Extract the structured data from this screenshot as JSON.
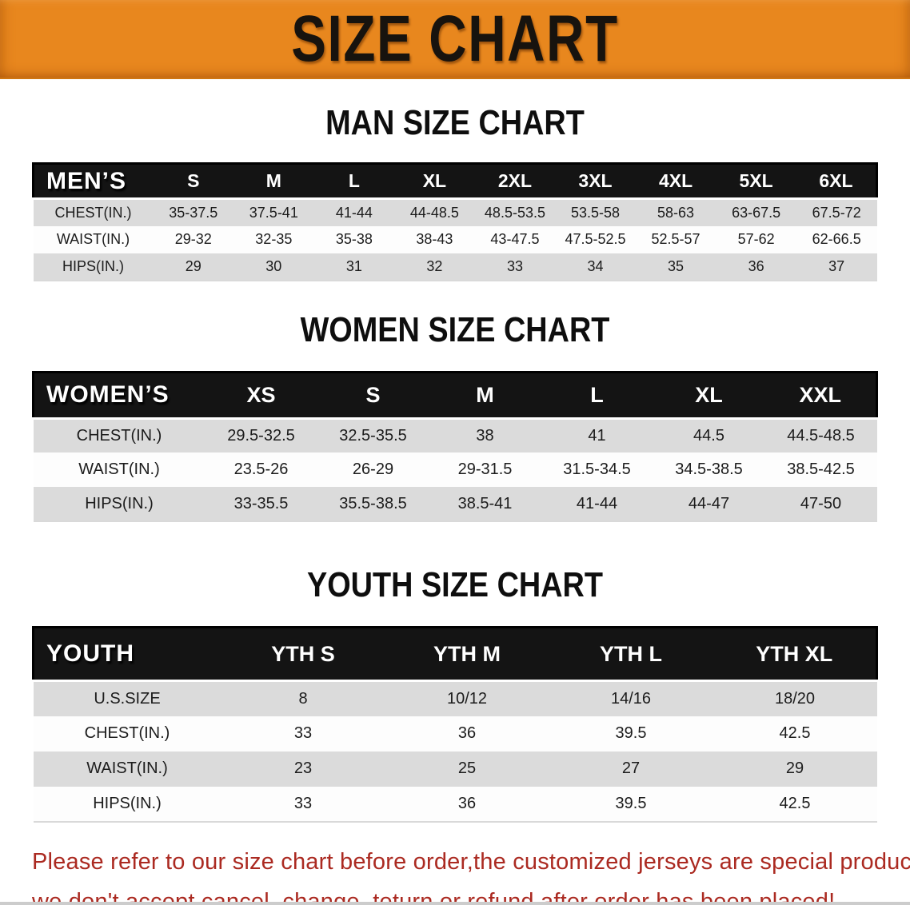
{
  "banner": {
    "title": "SIZE CHART"
  },
  "sections": [
    {
      "id": "men",
      "title": "MAN SIZE CHART",
      "header_label": "MEN’S",
      "columns": [
        "S",
        "M",
        "L",
        "XL",
        "2XL",
        "3XL",
        "4XL",
        "5XL",
        "6XL"
      ],
      "rows": [
        {
          "label": "CHEST(IN.)",
          "values": [
            "35-37.5",
            "37.5-41",
            "41-44",
            "44-48.5",
            "48.5-53.5",
            "53.5-58",
            "58-63",
            "63-67.5",
            "67.5-72"
          ]
        },
        {
          "label": "WAIST(IN.)",
          "values": [
            "29-32",
            "32-35",
            "35-38",
            "38-43",
            "43-47.5",
            "47.5-52.5",
            "52.5-57",
            "57-62",
            "62-66.5"
          ]
        },
        {
          "label": "HIPS(IN.)",
          "values": [
            "29",
            "30",
            "31",
            "32",
            "33",
            "34",
            "35",
            "36",
            "37"
          ]
        }
      ]
    },
    {
      "id": "women",
      "title": "WOMEN SIZE CHART",
      "header_label": "WOMEN’S",
      "columns": [
        "XS",
        "S",
        "M",
        "L",
        "XL",
        "XXL"
      ],
      "rows": [
        {
          "label": "CHEST(IN.)",
          "values": [
            "29.5-32.5",
            "32.5-35.5",
            "38",
            "41",
            "44.5",
            "44.5-48.5"
          ]
        },
        {
          "label": "WAIST(IN.)",
          "values": [
            "23.5-26",
            "26-29",
            "29-31.5",
            "31.5-34.5",
            "34.5-38.5",
            "38.5-42.5"
          ]
        },
        {
          "label": "HIPS(IN.)",
          "values": [
            "33-35.5",
            "35.5-38.5",
            "38.5-41",
            "41-44",
            "44-47",
            "47-50"
          ]
        }
      ]
    },
    {
      "id": "youth",
      "title": "YOUTH SIZE CHART",
      "header_label": "YOUTH",
      "columns": [
        "YTH S",
        "YTH M",
        "YTH L",
        "YTH XL"
      ],
      "rows": [
        {
          "label": "U.S.SIZE",
          "values": [
            "8",
            "10/12",
            "14/16",
            "18/20"
          ]
        },
        {
          "label": "CHEST(IN.)",
          "values": [
            "33",
            "36",
            "39.5",
            "42.5"
          ]
        },
        {
          "label": "WAIST(IN.)",
          "values": [
            "23",
            "25",
            "27",
            "29"
          ]
        },
        {
          "label": "HIPS(IN.)",
          "values": [
            "33",
            "36",
            "39.5",
            "42.5"
          ]
        }
      ]
    }
  ],
  "disclaimer": {
    "line1": "Please refer to our size chart before order,the customized jerseys are special products,",
    "line2": "we don't accept cancel, change, teturn or refund after order has been placed!"
  },
  "colors": {
    "banner_bg": "#E8871E",
    "table_header_bg": "#141414",
    "table_header_text": "#FFFFFF",
    "row_stripe": "#DBDBDB",
    "row_plain": "#FDFDFD",
    "disclaimer_text": "#AB2A21",
    "title_text": "#0E0E0E"
  }
}
